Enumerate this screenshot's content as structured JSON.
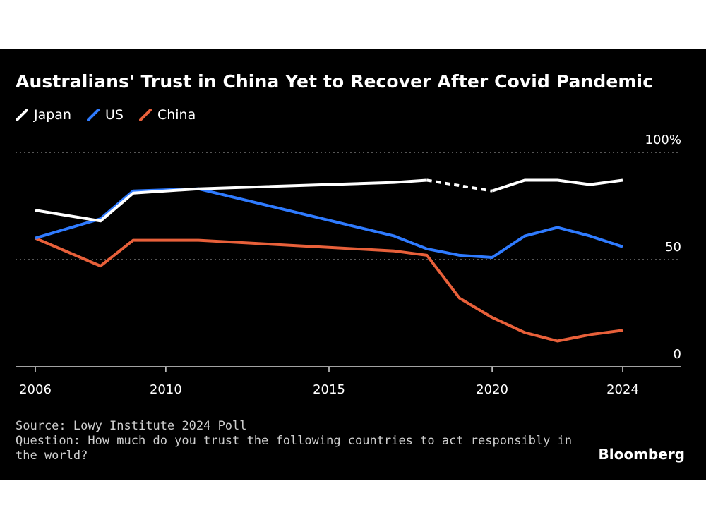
{
  "chart_data": {
    "type": "line",
    "title": "Australians' Trust in China Yet to Recover After Covid Pandemic",
    "xlabel": "",
    "ylabel": "",
    "xlim": [
      2006,
      2025
    ],
    "ylim": [
      0,
      100
    ],
    "x_ticks": [
      2006,
      2010,
      2015,
      2020,
      2024
    ],
    "y_ticks": [
      {
        "value": 100,
        "label": "100%"
      },
      {
        "value": 50,
        "label": "50"
      },
      {
        "value": 0,
        "label": "0"
      }
    ],
    "series": [
      {
        "name": "Japan",
        "color": "#ffffff",
        "segments": [
          {
            "style": "solid",
            "points": [
              [
                2006,
                73
              ],
              [
                2008,
                68
              ],
              [
                2009,
                81
              ],
              [
                2011,
                83
              ],
              [
                2017,
                86
              ],
              [
                2018,
                87
              ]
            ]
          },
          {
            "style": "dashed",
            "points": [
              [
                2018,
                87
              ],
              [
                2020,
                82
              ]
            ]
          },
          {
            "style": "solid",
            "points": [
              [
                2020,
                82
              ],
              [
                2021,
                87
              ],
              [
                2022,
                87
              ],
              [
                2023,
                85
              ],
              [
                2024,
                87
              ]
            ]
          }
        ]
      },
      {
        "name": "US",
        "color": "#2f7bff",
        "segments": [
          {
            "style": "solid",
            "points": [
              [
                2006,
                60
              ],
              [
                2008,
                69
              ],
              [
                2009,
                82
              ],
              [
                2011,
                83
              ],
              [
                2017,
                61
              ],
              [
                2018,
                55
              ],
              [
                2019,
                52
              ],
              [
                2020,
                51
              ],
              [
                2021,
                61
              ],
              [
                2022,
                65
              ],
              [
                2023,
                61
              ],
              [
                2024,
                56
              ]
            ]
          }
        ]
      },
      {
        "name": "China",
        "color": "#e8603a",
        "segments": [
          {
            "style": "solid",
            "points": [
              [
                2006,
                60
              ],
              [
                2008,
                47
              ],
              [
                2009,
                59
              ],
              [
                2011,
                59
              ],
              [
                2017,
                54
              ],
              [
                2018,
                52
              ],
              [
                2019,
                32
              ],
              [
                2020,
                23
              ],
              [
                2021,
                16
              ],
              [
                2022,
                12
              ],
              [
                2023,
                15
              ],
              [
                2024,
                17
              ]
            ]
          }
        ]
      }
    ]
  },
  "legend": [
    {
      "label": "Japan",
      "color": "#ffffff"
    },
    {
      "label": "US",
      "color": "#2f7bff"
    },
    {
      "label": "China",
      "color": "#e8603a"
    }
  ],
  "footer": {
    "source": "Source: Lowy Institute 2024 Poll",
    "question": "Question: How much do you trust the following countries to act responsibly in the world?"
  },
  "brand": "Bloomberg"
}
